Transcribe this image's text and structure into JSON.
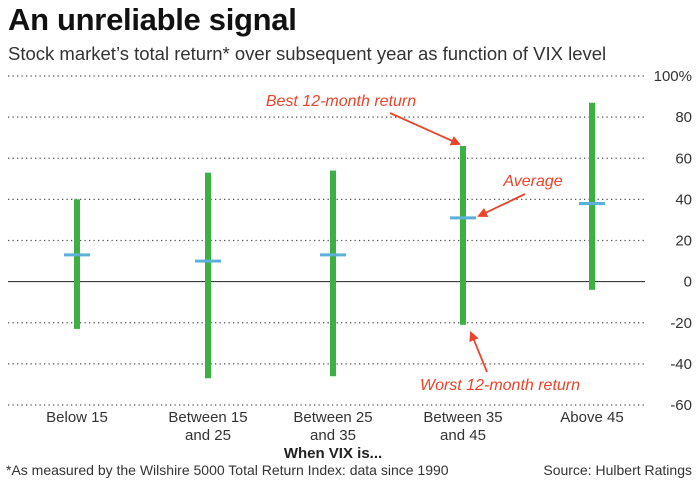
{
  "title": "An unreliable signal",
  "subtitle": "Stock market’s total return* over subsequent year as function of VIX level",
  "footnote": "*As measured by the Wilshire 5000 Total Return Index: data since 1990",
  "source": "Source: Hulbert Ratings",
  "colors": {
    "range": "#3cb043",
    "average": "#5ab0d8",
    "annotation": "#e8452c",
    "grid": "#555555"
  },
  "chart_data": {
    "type": "range-bar",
    "categories": [
      [
        "Below 15"
      ],
      [
        "Between 15",
        "and 25"
      ],
      [
        "Between 25",
        "and 35"
      ],
      [
        "Between 35",
        "and 45"
      ],
      [
        "Above 45"
      ]
    ],
    "series": [
      {
        "name": "Best 12-month return",
        "values": [
          40,
          53,
          54,
          66,
          87
        ]
      },
      {
        "name": "Worst 12-month return",
        "values": [
          -23,
          -47,
          -46,
          -21,
          -4
        ]
      },
      {
        "name": "Average",
        "values": [
          13,
          10,
          13,
          31,
          38
        ]
      }
    ],
    "xlabel": "When VIX is...",
    "ylabel": "",
    "ylim": [
      -60,
      100
    ],
    "yticks": [
      100,
      80,
      60,
      40,
      20,
      0,
      -20,
      -40,
      -60
    ],
    "ytick_labels": [
      "100%",
      "80",
      "60",
      "40",
      "20",
      "0",
      "-20",
      "-40",
      "-60"
    ],
    "grid": "dotted horizontal",
    "annotations": [
      {
        "text": "Best 12-month return",
        "points_to": "Between 35 and 45 best"
      },
      {
        "text": "Average",
        "points_to": "Between 35 and 45 average"
      },
      {
        "text": "Worst 12-month return",
        "points_to": "Between 35 and 45 worst"
      }
    ]
  }
}
